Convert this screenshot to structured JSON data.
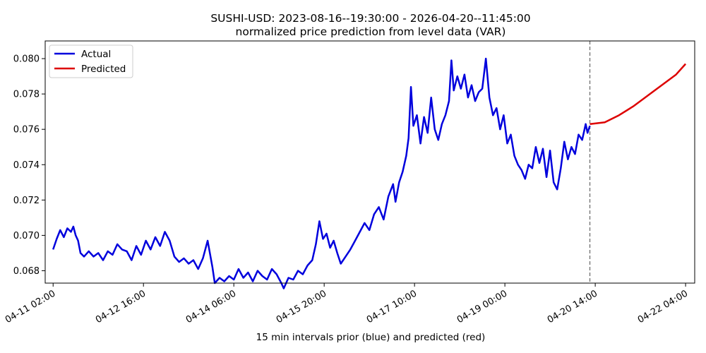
{
  "chart_data": {
    "type": "line",
    "title": "SUSHI-USD: 2023-08-16--19:30:00 - 2026-04-20--11:45:00",
    "subtitle": "normalized price prediction from level data (VAR)",
    "xlabel": "15 min intervals prior (blue) and predicted (red)",
    "ylabel": "",
    "x_ticks": [
      "04-11 02:00",
      "04-12 16:00",
      "04-14 06:00",
      "04-15 20:00",
      "04-17 10:00",
      "04-19 00:00",
      "04-20 14:00",
      "04-22 04:00"
    ],
    "y_ticks": [
      "0.068",
      "0.070",
      "0.072",
      "0.074",
      "0.076",
      "0.078",
      "0.080"
    ],
    "xlim": [
      "2026-04-10T22:40",
      "2026-04-22T07:50"
    ],
    "ylim": [
      0.0673,
      0.081
    ],
    "grid": false,
    "legend_position": "top-left",
    "forecast_start": "2026-04-20T11:45",
    "series": [
      {
        "name": "Actual",
        "color": "#0000dd",
        "points": [
          [
            "2026-04-11T02:00",
            0.0692
          ],
          [
            "2026-04-11T03:30",
            0.0698
          ],
          [
            "2026-04-11T05:00",
            0.0703
          ],
          [
            "2026-04-11T06:30",
            0.0699
          ],
          [
            "2026-04-11T08:00",
            0.0704
          ],
          [
            "2026-04-11T09:30",
            0.0702
          ],
          [
            "2026-04-11T10:30",
            0.0705
          ],
          [
            "2026-04-11T11:30",
            0.07
          ],
          [
            "2026-04-11T12:30",
            0.0697
          ],
          [
            "2026-04-11T13:30",
            0.069
          ],
          [
            "2026-04-11T15:00",
            0.0688
          ],
          [
            "2026-04-11T17:00",
            0.0691
          ],
          [
            "2026-04-11T19:00",
            0.0688
          ],
          [
            "2026-04-11T21:00",
            0.069
          ],
          [
            "2026-04-11T23:00",
            0.0686
          ],
          [
            "2026-04-12T01:00",
            0.0691
          ],
          [
            "2026-04-12T03:00",
            0.0689
          ],
          [
            "2026-04-12T05:00",
            0.0695
          ],
          [
            "2026-04-12T07:00",
            0.0692
          ],
          [
            "2026-04-12T09:00",
            0.0691
          ],
          [
            "2026-04-12T11:00",
            0.0686
          ],
          [
            "2026-04-12T13:00",
            0.0694
          ],
          [
            "2026-04-12T15:00",
            0.0689
          ],
          [
            "2026-04-12T17:00",
            0.0697
          ],
          [
            "2026-04-12T19:00",
            0.0692
          ],
          [
            "2026-04-12T21:00",
            0.0699
          ],
          [
            "2026-04-12T23:00",
            0.0694
          ],
          [
            "2026-04-13T01:00",
            0.0702
          ],
          [
            "2026-04-13T03:00",
            0.0697
          ],
          [
            "2026-04-13T05:00",
            0.0688
          ],
          [
            "2026-04-13T07:00",
            0.0685
          ],
          [
            "2026-04-13T09:00",
            0.0687
          ],
          [
            "2026-04-13T11:00",
            0.0684
          ],
          [
            "2026-04-13T13:00",
            0.0686
          ],
          [
            "2026-04-13T15:00",
            0.0681
          ],
          [
            "2026-04-13T17:00",
            0.0687
          ],
          [
            "2026-04-13T19:00",
            0.0697
          ],
          [
            "2026-04-13T21:00",
            0.0682
          ],
          [
            "2026-04-13T22:00",
            0.0673
          ],
          [
            "2026-04-14T00:00",
            0.0676
          ],
          [
            "2026-04-14T02:00",
            0.0674
          ],
          [
            "2026-04-14T04:00",
            0.0677
          ],
          [
            "2026-04-14T06:00",
            0.0675
          ],
          [
            "2026-04-14T08:00",
            0.0681
          ],
          [
            "2026-04-14T10:00",
            0.0676
          ],
          [
            "2026-04-14T12:00",
            0.0679
          ],
          [
            "2026-04-14T14:00",
            0.0674
          ],
          [
            "2026-04-14T16:00",
            0.068
          ],
          [
            "2026-04-14T18:00",
            0.0677
          ],
          [
            "2026-04-14T20:00",
            0.0675
          ],
          [
            "2026-04-14T22:00",
            0.0681
          ],
          [
            "2026-04-15T00:00",
            0.0678
          ],
          [
            "2026-04-15T02:00",
            0.0673
          ],
          [
            "2026-04-15T03:00",
            0.067
          ],
          [
            "2026-04-15T05:00",
            0.0676
          ],
          [
            "2026-04-15T07:00",
            0.0675
          ],
          [
            "2026-04-15T09:00",
            0.068
          ],
          [
            "2026-04-15T11:00",
            0.0678
          ],
          [
            "2026-04-15T13:00",
            0.0683
          ],
          [
            "2026-04-15T15:00",
            0.0686
          ],
          [
            "2026-04-15T16:30",
            0.0695
          ],
          [
            "2026-04-15T18:00",
            0.0708
          ],
          [
            "2026-04-15T19:30",
            0.0698
          ],
          [
            "2026-04-15T21:00",
            0.0701
          ],
          [
            "2026-04-15T22:30",
            0.0693
          ],
          [
            "2026-04-16T00:00",
            0.0697
          ],
          [
            "2026-04-16T01:30",
            0.069
          ],
          [
            "2026-04-16T03:00",
            0.0684
          ],
          [
            "2026-04-16T05:00",
            0.0688
          ],
          [
            "2026-04-16T07:00",
            0.0692
          ],
          [
            "2026-04-16T09:00",
            0.0697
          ],
          [
            "2026-04-16T11:00",
            0.0702
          ],
          [
            "2026-04-16T13:00",
            0.0707
          ],
          [
            "2026-04-16T15:00",
            0.0703
          ],
          [
            "2026-04-16T17:00",
            0.0712
          ],
          [
            "2026-04-16T19:00",
            0.0716
          ],
          [
            "2026-04-16T21:00",
            0.0709
          ],
          [
            "2026-04-16T23:00",
            0.0722
          ],
          [
            "2026-04-17T01:00",
            0.0729
          ],
          [
            "2026-04-17T02:00",
            0.0719
          ],
          [
            "2026-04-17T03:30",
            0.073
          ],
          [
            "2026-04-17T05:00",
            0.0736
          ],
          [
            "2026-04-17T06:30",
            0.0745
          ],
          [
            "2026-04-17T07:30",
            0.0755
          ],
          [
            "2026-04-17T08:30",
            0.0784
          ],
          [
            "2026-04-17T09:30",
            0.0762
          ],
          [
            "2026-04-17T11:00",
            0.0768
          ],
          [
            "2026-04-17T12:30",
            0.0752
          ],
          [
            "2026-04-17T14:00",
            0.0767
          ],
          [
            "2026-04-17T15:30",
            0.0758
          ],
          [
            "2026-04-17T17:00",
            0.0778
          ],
          [
            "2026-04-17T18:30",
            0.076
          ],
          [
            "2026-04-17T20:00",
            0.0754
          ],
          [
            "2026-04-17T21:30",
            0.0763
          ],
          [
            "2026-04-17T23:00",
            0.0768
          ],
          [
            "2026-04-18T00:30",
            0.0776
          ],
          [
            "2026-04-18T01:30",
            0.0799
          ],
          [
            "2026-04-18T02:30",
            0.0782
          ],
          [
            "2026-04-18T04:00",
            0.079
          ],
          [
            "2026-04-18T05:30",
            0.0783
          ],
          [
            "2026-04-18T07:00",
            0.0791
          ],
          [
            "2026-04-18T08:30",
            0.0778
          ],
          [
            "2026-04-18T10:00",
            0.0785
          ],
          [
            "2026-04-18T11:30",
            0.0776
          ],
          [
            "2026-04-18T13:00",
            0.0781
          ],
          [
            "2026-04-18T14:30",
            0.0783
          ],
          [
            "2026-04-18T16:00",
            0.08
          ],
          [
            "2026-04-18T17:30",
            0.0778
          ],
          [
            "2026-04-18T19:00",
            0.0768
          ],
          [
            "2026-04-18T20:30",
            0.0772
          ],
          [
            "2026-04-18T22:00",
            0.076
          ],
          [
            "2026-04-18T23:30",
            0.0768
          ],
          [
            "2026-04-19T01:00",
            0.0752
          ],
          [
            "2026-04-19T02:30",
            0.0757
          ],
          [
            "2026-04-19T04:00",
            0.0745
          ],
          [
            "2026-04-19T05:30",
            0.074
          ],
          [
            "2026-04-19T07:00",
            0.0737
          ],
          [
            "2026-04-19T08:30",
            0.0732
          ],
          [
            "2026-04-19T10:00",
            0.074
          ],
          [
            "2026-04-19T11:30",
            0.0738
          ],
          [
            "2026-04-19T13:00",
            0.075
          ],
          [
            "2026-04-19T14:30",
            0.0741
          ],
          [
            "2026-04-19T16:00",
            0.0749
          ],
          [
            "2026-04-19T17:30",
            0.0733
          ],
          [
            "2026-04-19T19:00",
            0.0748
          ],
          [
            "2026-04-19T20:30",
            0.073
          ],
          [
            "2026-04-19T22:00",
            0.0726
          ],
          [
            "2026-04-19T23:30",
            0.0738
          ],
          [
            "2026-04-20T01:00",
            0.0753
          ],
          [
            "2026-04-20T02:30",
            0.0743
          ],
          [
            "2026-04-20T04:00",
            0.075
          ],
          [
            "2026-04-20T05:30",
            0.0746
          ],
          [
            "2026-04-20T07:00",
            0.0757
          ],
          [
            "2026-04-20T08:30",
            0.0754
          ],
          [
            "2026-04-20T10:00",
            0.0763
          ],
          [
            "2026-04-20T10:45",
            0.0758
          ],
          [
            "2026-04-20T11:45",
            0.0762
          ]
        ]
      },
      {
        "name": "Predicted",
        "color": "#dd0000",
        "points": [
          [
            "2026-04-20T11:45",
            0.0763
          ],
          [
            "2026-04-20T18:00",
            0.0764
          ],
          [
            "2026-04-21T00:00",
            0.0768
          ],
          [
            "2026-04-21T06:00",
            0.0773
          ],
          [
            "2026-04-21T12:00",
            0.0779
          ],
          [
            "2026-04-21T18:00",
            0.0785
          ],
          [
            "2026-04-22T00:00",
            0.0791
          ],
          [
            "2026-04-22T04:00",
            0.0797
          ]
        ]
      }
    ]
  }
}
